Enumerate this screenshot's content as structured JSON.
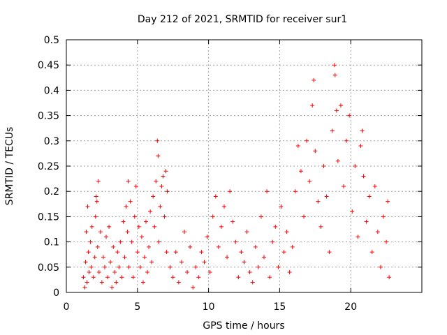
{
  "chart_data": {
    "type": "scatter",
    "title": "Day 212 of 2021, SRMTID for receiver sur1",
    "xlabel": "GPS time / hours",
    "ylabel": "SRMTID / TECUs",
    "xlim": [
      0,
      25
    ],
    "ylim": [
      0,
      0.5
    ],
    "xticks": [
      0,
      5,
      10,
      15,
      20
    ],
    "yticks": [
      0,
      0.05,
      0.1,
      0.15,
      0.2,
      0.25,
      0.3,
      0.35,
      0.4,
      0.45,
      0.5
    ],
    "xtick_labels": [
      "0",
      "5",
      "10",
      "15",
      "20"
    ],
    "ytick_labels": [
      "0",
      "0.05",
      "0.1",
      "0.15",
      "0.2",
      "0.25",
      "0.3",
      "0.35",
      "0.4",
      "0.45",
      "0.5"
    ],
    "grid": true,
    "marker": "+",
    "color": "#ff0000",
    "series": [
      {
        "name": "SRMTID",
        "points": [
          [
            1.2,
            0.03
          ],
          [
            1.3,
            0.01
          ],
          [
            1.35,
            0.06
          ],
          [
            1.4,
            0.12
          ],
          [
            1.45,
            0.02
          ],
          [
            1.5,
            0.17
          ],
          [
            1.55,
            0.08
          ],
          [
            1.6,
            0.04
          ],
          [
            1.7,
            0.1
          ],
          [
            1.75,
            0.05
          ],
          [
            1.8,
            0.13
          ],
          [
            1.9,
            0.03
          ],
          [
            2.0,
            0.07
          ],
          [
            2.05,
            0.15
          ],
          [
            2.1,
            0.19
          ],
          [
            2.15,
            0.18
          ],
          [
            2.2,
            0.09
          ],
          [
            2.25,
            0.22
          ],
          [
            2.3,
            0.04
          ],
          [
            2.4,
            0.12
          ],
          [
            2.5,
            0.02
          ],
          [
            2.6,
            0.07
          ],
          [
            2.7,
            0.05
          ],
          [
            2.8,
            0.11
          ],
          [
            2.9,
            0.03
          ],
          [
            3.0,
            0.13
          ],
          [
            3.1,
            0.06
          ],
          [
            3.2,
            0.01
          ],
          [
            3.3,
            0.09
          ],
          [
            3.4,
            0.04
          ],
          [
            3.5,
            0.02
          ],
          [
            3.6,
            0.08
          ],
          [
            3.7,
            0.05
          ],
          [
            3.8,
            0.1
          ],
          [
            3.9,
            0.03
          ],
          [
            4.0,
            0.14
          ],
          [
            4.1,
            0.07
          ],
          [
            4.2,
            0.17
          ],
          [
            4.3,
            0.12
          ],
          [
            4.35,
            0.22
          ],
          [
            4.4,
            0.05
          ],
          [
            4.5,
            0.18
          ],
          [
            4.6,
            0.1
          ],
          [
            4.7,
            0.03
          ],
          [
            4.8,
            0.15
          ],
          [
            4.9,
            0.21
          ],
          [
            5.0,
            0.08
          ],
          [
            5.1,
            0.13
          ],
          [
            5.2,
            0.05
          ],
          [
            5.3,
            0.11
          ],
          [
            5.4,
            0.02
          ],
          [
            5.5,
            0.07
          ],
          [
            5.6,
            0.14
          ],
          [
            5.7,
            0.04
          ],
          [
            5.8,
            0.09
          ],
          [
            5.9,
            0.16
          ],
          [
            6.0,
            0.06
          ],
          [
            6.1,
            0.19
          ],
          [
            6.2,
            0.13
          ],
          [
            6.3,
            0.22
          ],
          [
            6.4,
            0.3
          ],
          [
            6.45,
            0.27
          ],
          [
            6.5,
            0.1
          ],
          [
            6.6,
            0.17
          ],
          [
            6.7,
            0.21
          ],
          [
            6.8,
            0.23
          ],
          [
            6.9,
            0.15
          ],
          [
            7.0,
            0.24
          ],
          [
            7.05,
            0.08
          ],
          [
            7.1,
            0.2
          ],
          [
            7.3,
            0.05
          ],
          [
            7.5,
            0.03
          ],
          [
            7.7,
            0.08
          ],
          [
            7.9,
            0.02
          ],
          [
            8.1,
            0.06
          ],
          [
            8.3,
            0.12
          ],
          [
            8.5,
            0.04
          ],
          [
            8.7,
            0.09
          ],
          [
            8.9,
            0.01
          ],
          [
            9.1,
            0.05
          ],
          [
            9.3,
            0.03
          ],
          [
            9.5,
            0.08
          ],
          [
            9.7,
            0.06
          ],
          [
            9.9,
            0.11
          ],
          [
            10.1,
            0.04
          ],
          [
            10.3,
            0.15
          ],
          [
            10.5,
            0.19
          ],
          [
            10.7,
            0.09
          ],
          [
            10.9,
            0.13
          ],
          [
            11.1,
            0.17
          ],
          [
            11.3,
            0.07
          ],
          [
            11.5,
            0.2
          ],
          [
            11.7,
            0.14
          ],
          [
            11.9,
            0.1
          ],
          [
            12.1,
            0.03
          ],
          [
            12.3,
            0.08
          ],
          [
            12.5,
            0.06
          ],
          [
            12.7,
            0.12
          ],
          [
            12.9,
            0.04
          ],
          [
            13.1,
            0.02
          ],
          [
            13.3,
            0.09
          ],
          [
            13.5,
            0.05
          ],
          [
            13.7,
            0.15
          ],
          [
            13.9,
            0.07
          ],
          [
            14.1,
            0.2
          ],
          [
            14.3,
            0.03
          ],
          [
            14.5,
            0.1
          ],
          [
            14.7,
            0.13
          ],
          [
            14.9,
            0.05
          ],
          [
            15.1,
            0.17
          ],
          [
            15.3,
            0.08
          ],
          [
            15.5,
            0.12
          ],
          [
            15.7,
            0.04
          ],
          [
            15.9,
            0.09
          ],
          [
            16.1,
            0.2
          ],
          [
            16.3,
            0.29
          ],
          [
            16.5,
            0.24
          ],
          [
            16.7,
            0.15
          ],
          [
            16.9,
            0.3
          ],
          [
            17.1,
            0.22
          ],
          [
            17.3,
            0.37
          ],
          [
            17.4,
            0.42
          ],
          [
            17.5,
            0.28
          ],
          [
            17.7,
            0.18
          ],
          [
            17.9,
            0.13
          ],
          [
            18.1,
            0.25
          ],
          [
            18.3,
            0.19
          ],
          [
            18.5,
            0.08
          ],
          [
            18.7,
            0.32
          ],
          [
            18.85,
            0.45
          ],
          [
            18.9,
            0.43
          ],
          [
            19.0,
            0.36
          ],
          [
            19.1,
            0.26
          ],
          [
            19.3,
            0.37
          ],
          [
            19.5,
            0.21
          ],
          [
            19.7,
            0.3
          ],
          [
            19.9,
            0.35
          ],
          [
            20.1,
            0.16
          ],
          [
            20.3,
            0.25
          ],
          [
            20.5,
            0.11
          ],
          [
            20.7,
            0.29
          ],
          [
            20.8,
            0.32
          ],
          [
            20.9,
            0.23
          ],
          [
            21.1,
            0.14
          ],
          [
            21.3,
            0.19
          ],
          [
            21.5,
            0.08
          ],
          [
            21.7,
            0.21
          ],
          [
            21.9,
            0.12
          ],
          [
            22.1,
            0.05
          ],
          [
            22.3,
            0.15
          ],
          [
            22.5,
            0.1
          ],
          [
            22.6,
            0.18
          ],
          [
            22.7,
            0.03
          ]
        ]
      }
    ]
  }
}
